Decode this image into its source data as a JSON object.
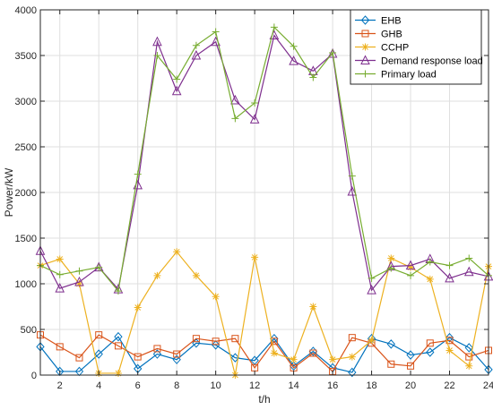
{
  "chart_data": {
    "type": "line",
    "xlabel": "t/h",
    "ylabel": "Power/kW",
    "xlim": [
      1,
      24
    ],
    "ylim": [
      0,
      4000
    ],
    "xticks": [
      "2",
      "4",
      "6",
      "8",
      "10",
      "12",
      "14",
      "16",
      "18",
      "20",
      "22",
      "24"
    ],
    "yticks": [
      "0",
      "500",
      "1000",
      "1500",
      "2000",
      "2500",
      "3000",
      "3500",
      "4000"
    ],
    "grid": true,
    "legend_position": "top-right",
    "x": [
      1,
      2,
      3,
      4,
      5,
      6,
      7,
      8,
      9,
      10,
      11,
      12,
      13,
      14,
      15,
      16,
      17,
      18,
      19,
      20,
      21,
      22,
      23,
      24
    ],
    "series": [
      {
        "name": "EHB",
        "color": "#0072BD",
        "marker": "diamond",
        "values": [
          310,
          40,
          40,
          230,
          420,
          70,
          230,
          170,
          350,
          330,
          190,
          160,
          400,
          100,
          260,
          80,
          30,
          400,
          340,
          220,
          250,
          410,
          300,
          60
        ]
      },
      {
        "name": "GHB",
        "color": "#D95319",
        "marker": "square",
        "values": [
          440,
          310,
          190,
          440,
          320,
          200,
          290,
          230,
          400,
          370,
          400,
          80,
          370,
          80,
          240,
          40,
          410,
          350,
          120,
          100,
          350,
          380,
          200,
          270
        ]
      },
      {
        "name": "CCHP",
        "color": "#EDB120",
        "marker": "asterisk",
        "values": [
          1200,
          1270,
          1000,
          20,
          20,
          740,
          1090,
          1350,
          1090,
          860,
          0,
          1290,
          240,
          170,
          750,
          170,
          200,
          380,
          1280,
          1180,
          1050,
          270,
          100,
          1190
        ]
      },
      {
        "name": "Demand response load",
        "color": "#7E2F8E",
        "marker": "triangle",
        "values": [
          1360,
          950,
          1020,
          1180,
          940,
          2080,
          3650,
          3110,
          3500,
          3650,
          3010,
          2800,
          3720,
          3440,
          3330,
          3520,
          2010,
          930,
          1190,
          1200,
          1270,
          1060,
          1130,
          1080
        ]
      },
      {
        "name": "Primary load",
        "color": "#77AC30",
        "marker": "plus",
        "values": [
          1200,
          1100,
          1140,
          1180,
          920,
          2200,
          3500,
          3240,
          3610,
          3760,
          2810,
          2980,
          3810,
          3600,
          3260,
          3530,
          2180,
          1060,
          1170,
          1090,
          1240,
          1200,
          1280,
          1090
        ]
      }
    ]
  }
}
